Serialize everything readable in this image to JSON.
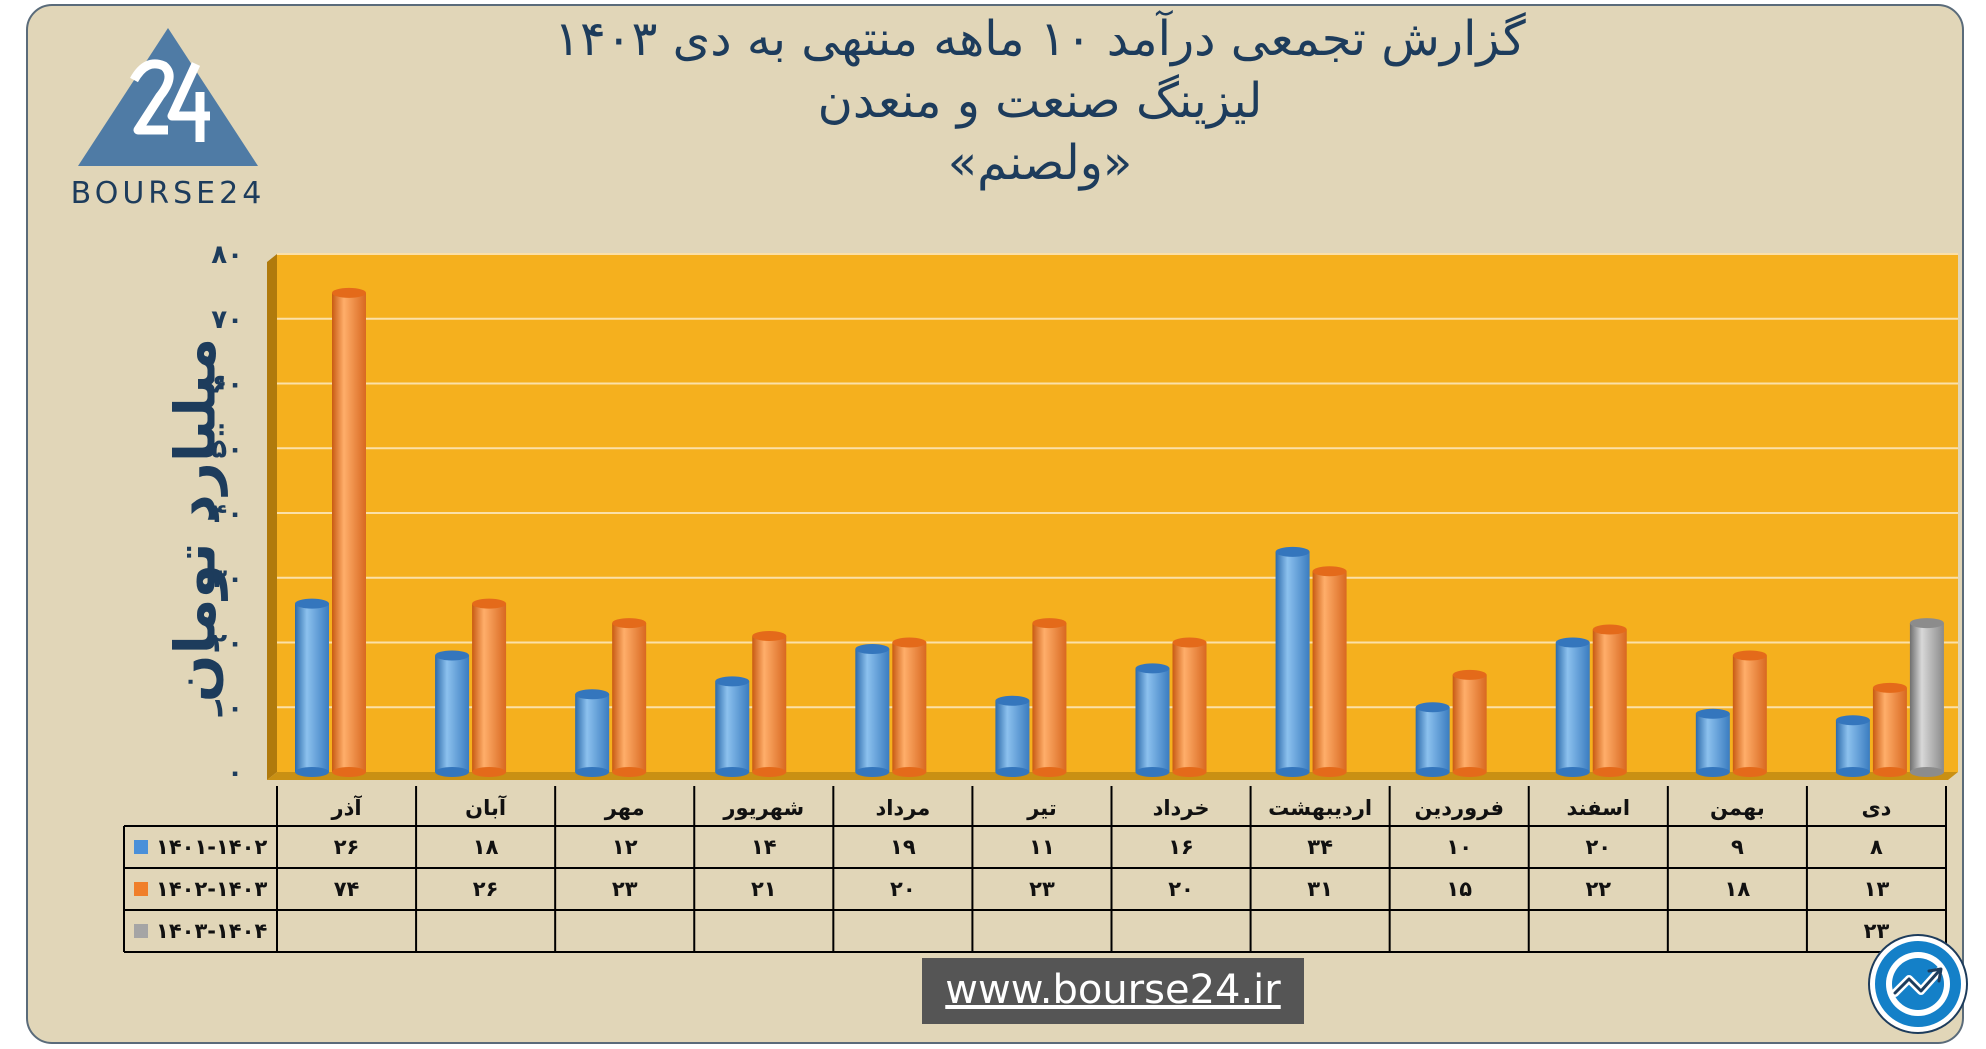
{
  "logo": {
    "icon": "bourse24-triangle-logo",
    "mark": "24",
    "text": "BOURSE24"
  },
  "titles": {
    "line1": "گزارش تجمعی درآمد ۱۰ ماهه منتهی به دی ۱۴۰۳",
    "line2": "لیزینگ صنعت و منعدن",
    "line3": "«ولصنم»"
  },
  "footer": {
    "url": "www.bourse24.ir",
    "badge_icon": "bourse24-trend-arrow-icon"
  },
  "colors": {
    "plot_bg": "#f5b01e",
    "series1": "#4a90d9",
    "series2": "#f07f2a",
    "series3": "#a5a5a5",
    "card_bg": "#e1d6b8",
    "text": "#1d3c5c"
  },
  "chart_data": {
    "type": "bar",
    "ylabel": "میلیارد تومان",
    "xlabel": "",
    "ylim": [
      0,
      80
    ],
    "yticks": [
      "۰",
      "۱۰",
      "۲۰",
      "۳۰",
      "۴۰",
      "۵۰",
      "۶۰",
      "۷۰",
      "۸۰"
    ],
    "categories": [
      "دی",
      "بهمن",
      "اسفند",
      "فروردین",
      "اردیبهشت",
      "خرداد",
      "تیر",
      "مرداد",
      "شهریور",
      "مهر",
      "آبان",
      "آذر"
    ],
    "series": [
      {
        "name": "۱۴۰۱-۱۴۰۲",
        "values": [
          8,
          9,
          20,
          10,
          34,
          16,
          11,
          19,
          14,
          12,
          18,
          26
        ],
        "labels": [
          "۸",
          "۹",
          "۲۰",
          "۱۰",
          "۳۴",
          "۱۶",
          "۱۱",
          "۱۹",
          "۱۴",
          "۱۲",
          "۱۸",
          "۲۶"
        ]
      },
      {
        "name": "۱۴۰۲-۱۴۰۳",
        "values": [
          13,
          18,
          22,
          15,
          31,
          20,
          23,
          20,
          21,
          23,
          26,
          74
        ],
        "labels": [
          "۱۳",
          "۱۸",
          "۲۲",
          "۱۵",
          "۳۱",
          "۲۰",
          "۲۳",
          "۲۰",
          "۲۱",
          "۲۳",
          "۲۶",
          "۷۴"
        ]
      },
      {
        "name": "۱۴۰۳-۱۴۰۴",
        "values": [
          23,
          null,
          null,
          null,
          null,
          null,
          null,
          null,
          null,
          null,
          null,
          null
        ],
        "labels": [
          "۲۳",
          "",
          "",
          "",
          "",
          "",
          "",
          "",
          "",
          "",
          "",
          ""
        ]
      }
    ],
    "grid": true,
    "legend": "data-table"
  }
}
